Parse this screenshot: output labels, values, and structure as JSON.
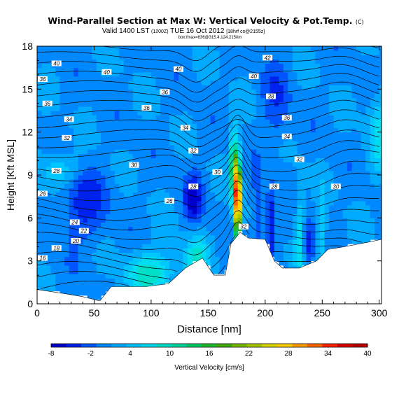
{
  "chart_data": {
    "type": "heatmap",
    "title": "Wind-Parallel Section at Max W: Vertical Velocity & Pot.Temp.",
    "title_suffix": "(C)",
    "subtitle_main": "Valid 1400 LST",
    "subtitle_utc": "(1200Z)",
    "subtitle_date": "TUE 16 Oct 2012",
    "subtitle_run": "[18hrf cs@2155z]",
    "subtitle_box": "box:fmax=636@315.4,124.2150m",
    "xlabel": "Distance [nm]",
    "ylabel": "Height [Kft MSL]",
    "xlim": [
      0,
      302
    ],
    "ylim": [
      0,
      18
    ],
    "xticks": [
      0,
      50,
      100,
      150,
      200,
      250,
      300
    ],
    "yticks": [
      0,
      3,
      6,
      9,
      12,
      15,
      18
    ],
    "grid": false,
    "colorbar": {
      "label": "Vertical Velocity [cm/s]",
      "tick_labels": [
        "-8",
        "-2",
        "4",
        "10",
        "16",
        "22",
        "28",
        "34",
        "40"
      ],
      "colors": [
        "#0000cc",
        "#0022ee",
        "#0055ff",
        "#0088ff",
        "#00aaff",
        "#00c8ff",
        "#00ddf0",
        "#00e0c8",
        "#00d8a0",
        "#00cc66",
        "#22bb33",
        "#44aa11",
        "#77bb00",
        "#a8c800",
        "#d8d800",
        "#ffd000",
        "#ffa000",
        "#ff6600",
        "#ff2200",
        "#dd0000",
        "#bb0000"
      ]
    },
    "contour_labels": [
      {
        "text": "40",
        "x": 17,
        "y": 16.8
      },
      {
        "text": "40",
        "x": 61,
        "y": 16.2
      },
      {
        "text": "36",
        "x": -5,
        "y": 15.7
      },
      {
        "text": "36",
        "x": 9,
        "y": 14.0
      },
      {
        "text": "34",
        "x": 28,
        "y": 12.9
      },
      {
        "text": "32",
        "x": 26,
        "y": 11.6
      },
      {
        "text": "28",
        "x": 17,
        "y": 9.3
      },
      {
        "text": "26",
        "x": 2,
        "y": 7.7
      },
      {
        "text": "24",
        "x": 33,
        "y": 5.7
      },
      {
        "text": "22",
        "x": 41,
        "y": 5.1
      },
      {
        "text": "20",
        "x": 34,
        "y": 4.4
      },
      {
        "text": "18",
        "x": 17,
        "y": 3.9
      },
      {
        "text": "16",
        "x": -3,
        "y": 3.2
      },
      {
        "text": "40",
        "x": 124,
        "y": 16.4
      },
      {
        "text": "36",
        "x": 112,
        "y": 14.8
      },
      {
        "text": "36",
        "x": 96,
        "y": 13.7
      },
      {
        "text": "34",
        "x": 130,
        "y": 12.3
      },
      {
        "text": "32",
        "x": 137,
        "y": 10.7
      },
      {
        "text": "30",
        "x": 85,
        "y": 9.7
      },
      {
        "text": "30",
        "x": 158,
        "y": 9.2
      },
      {
        "text": "28",
        "x": 137,
        "y": 8.2
      },
      {
        "text": "26",
        "x": 116,
        "y": 7.2
      },
      {
        "text": "42",
        "x": 202,
        "y": 17.2
      },
      {
        "text": "40",
        "x": 190,
        "y": 15.9
      },
      {
        "text": "38",
        "x": 205,
        "y": 14.5
      },
      {
        "text": "36",
        "x": 219,
        "y": 13.0
      },
      {
        "text": "34",
        "x": 219,
        "y": 11.7
      },
      {
        "text": "32",
        "x": 230,
        "y": 10.1
      },
      {
        "text": "28",
        "x": 208,
        "y": 8.2
      },
      {
        "text": "30",
        "x": 262,
        "y": 8.2
      },
      {
        "text": "32",
        "x": 181,
        "y": 5.4
      }
    ]
  }
}
